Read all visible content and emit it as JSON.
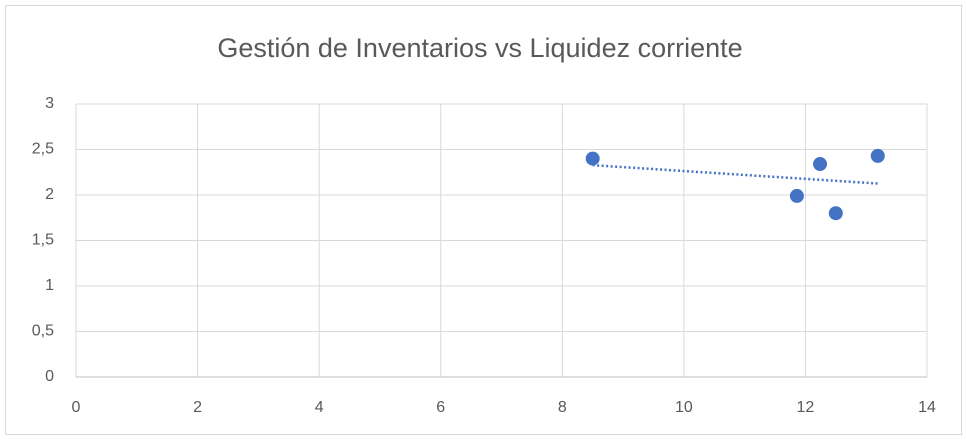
{
  "chart_data": {
    "type": "scatter",
    "title": "Gestión de Inventarios vs Liquidez corriente",
    "x": [
      8.5,
      11.86,
      12.24,
      12.5,
      13.19
    ],
    "values": [
      2.4,
      1.99,
      2.34,
      1.8,
      2.43
    ],
    "color": "#4472c4",
    "trendline": "linear",
    "xlim": [
      0,
      14
    ],
    "xticks": [
      0,
      2,
      4,
      6,
      8,
      10,
      12,
      14
    ],
    "ylim": [
      0,
      3
    ],
    "yticks": [
      0,
      {
        "value": 0.5,
        "label": "0,5"
      },
      1,
      {
        "value": 1.5,
        "label": "1,5"
      },
      2,
      {
        "value": 2.5,
        "label": "2,5"
      },
      3
    ],
    "grid": true
  }
}
